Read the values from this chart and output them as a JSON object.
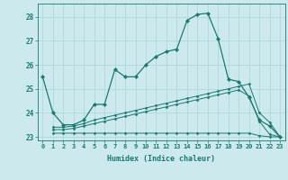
{
  "xlabel": "Humidex (Indice chaleur)",
  "background_color": "#cce9ed",
  "grid_color": "#aad4d8",
  "line_color": "#1a7a6e",
  "xlim": [
    -0.5,
    23.5
  ],
  "ylim": [
    22.85,
    28.55
  ],
  "yticks": [
    23,
    24,
    25,
    26,
    27,
    28
  ],
  "xticks": [
    0,
    1,
    2,
    3,
    4,
    5,
    6,
    7,
    8,
    9,
    10,
    11,
    12,
    13,
    14,
    15,
    16,
    17,
    18,
    19,
    20,
    21,
    22,
    23
  ],
  "line1_x": [
    0,
    1,
    2,
    3,
    4,
    5,
    6,
    7,
    8,
    9,
    10,
    11,
    12,
    13,
    14,
    15,
    16,
    17,
    18,
    19,
    20,
    21,
    22,
    23
  ],
  "line1_y": [
    25.5,
    24.0,
    23.5,
    23.5,
    23.7,
    24.35,
    24.35,
    25.8,
    25.5,
    25.5,
    26.0,
    26.35,
    26.55,
    26.65,
    27.85,
    28.1,
    28.15,
    27.1,
    25.4,
    25.3,
    24.65,
    23.7,
    23.45,
    23.0
  ],
  "line2_x": [
    1,
    2,
    3,
    4,
    5,
    6,
    7,
    8,
    9,
    10,
    11,
    12,
    13,
    14,
    15,
    16,
    17,
    18,
    19,
    20,
    21,
    22,
    23
  ],
  "line2_y": [
    23.4,
    23.4,
    23.45,
    23.55,
    23.7,
    23.8,
    23.9,
    24.0,
    24.1,
    24.2,
    24.3,
    24.4,
    24.5,
    24.6,
    24.7,
    24.8,
    24.9,
    25.0,
    25.1,
    25.2,
    24.0,
    23.6,
    23.0
  ],
  "line3_x": [
    1,
    2,
    3,
    4,
    5,
    6,
    7,
    8,
    9,
    10,
    11,
    12,
    13,
    14,
    15,
    16,
    17,
    18,
    19,
    20,
    21,
    22,
    23
  ],
  "line3_y": [
    23.3,
    23.3,
    23.35,
    23.45,
    23.55,
    23.65,
    23.75,
    23.85,
    23.95,
    24.05,
    24.15,
    24.25,
    24.35,
    24.45,
    24.55,
    24.65,
    24.75,
    24.85,
    24.95,
    24.7,
    23.65,
    23.1,
    23.0
  ],
  "line4_x": [
    1,
    2,
    3,
    4,
    5,
    6,
    7,
    8,
    9,
    10,
    11,
    12,
    13,
    14,
    15,
    16,
    17,
    18,
    19,
    20,
    21,
    22,
    23
  ],
  "line4_y": [
    23.15,
    23.15,
    23.15,
    23.15,
    23.15,
    23.15,
    23.15,
    23.15,
    23.15,
    23.15,
    23.15,
    23.15,
    23.15,
    23.15,
    23.15,
    23.15,
    23.15,
    23.15,
    23.15,
    23.15,
    23.05,
    23.0,
    23.0
  ]
}
